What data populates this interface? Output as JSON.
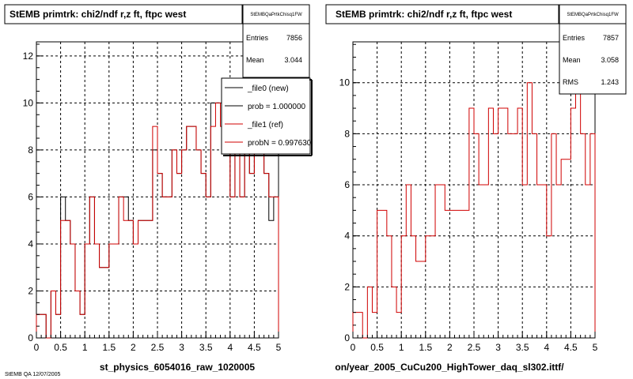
{
  "chart_data": [
    {
      "type": "line",
      "title": "StEMB primtrk: chi2/ndf r,z ft, ftpc west",
      "xlabel": "st_physics_6054016_raw_1020005",
      "ylabel": "",
      "xlim": [
        0,
        5
      ],
      "ylim": [
        0,
        12.6
      ],
      "x_ticks": [
        "0",
        "0.5",
        "1",
        "1.5",
        "2",
        "2.5",
        "3",
        "3.5",
        "4",
        "4.5",
        "5"
      ],
      "y_ticks": [
        "0",
        "2",
        "4",
        "6",
        "8",
        "10",
        "12"
      ],
      "grid": true,
      "stats": {
        "name": "StEMBQaPrtkChisq1FW",
        "rows": [
          {
            "label": "Entries",
            "value": "7856"
          },
          {
            "label": "Mean",
            "value": "3.044"
          }
        ]
      },
      "legend": {
        "placement": "top-right",
        "entries": [
          {
            "label": "_file0 (new)",
            "color": "#000000"
          },
          {
            "label": "prob = 1.000000",
            "color": "#000000"
          },
          {
            "label": "_file1 (ref)",
            "color": "#d00000"
          },
          {
            "label": "probN = 0.997630",
            "color": "#d00000"
          }
        ]
      },
      "series": [
        {
          "name": "_file0 (new)",
          "color": "#000000",
          "bin_width": 0.1,
          "values": [
            1,
            1,
            0,
            2,
            1,
            6,
            5,
            4,
            2,
            1,
            4,
            6,
            4,
            3,
            3,
            4,
            4,
            6,
            6,
            5,
            4,
            5,
            5,
            5,
            8,
            7,
            6,
            6,
            8,
            7,
            8,
            9,
            9,
            8,
            7,
            6,
            10,
            10,
            10,
            8,
            6,
            9,
            6,
            8,
            7,
            9,
            9,
            7,
            5,
            6
          ]
        },
        {
          "name": "_file1 (ref)",
          "color": "#d00000",
          "bin_width": 0.1,
          "values": [
            1,
            1,
            0,
            2,
            1,
            5,
            5,
            4,
            2,
            1,
            4,
            6,
            4,
            3,
            3,
            4,
            4,
            6,
            5,
            5,
            4,
            5,
            5,
            5,
            9,
            7,
            6,
            6,
            8,
            7,
            8,
            9,
            9,
            8,
            7,
            6,
            9,
            10,
            9,
            8,
            6,
            9,
            6,
            8,
            7,
            9,
            9,
            7,
            6,
            6
          ]
        }
      ]
    },
    {
      "type": "line",
      "title": "StEMB primtrk: chi2/ndf r,z ft, ftpc west",
      "xlabel": "on/year_2005_CuCu200_HighTower_daq_sl302.ittf/",
      "ylabel": "",
      "xlim": [
        0,
        5
      ],
      "ylim": [
        0,
        11.6
      ],
      "x_ticks": [
        "0",
        "0.5",
        "1",
        "1.5",
        "2",
        "2.5",
        "3",
        "3.5",
        "4",
        "4.5",
        "5"
      ],
      "y_ticks": [
        "0",
        "2",
        "4",
        "6",
        "8",
        "10"
      ],
      "grid": true,
      "stats": {
        "name": "StEMBQaPrtkChisq1FW",
        "rows": [
          {
            "label": "Entries",
            "value": "7857"
          },
          {
            "label": "Mean",
            "value": "3.058"
          },
          {
            "label": "RMS",
            "value": "1.243"
          }
        ]
      },
      "series": [
        {
          "name": "",
          "color": "#d00000",
          "bin_width": 0.1,
          "values": [
            1,
            1,
            0,
            2,
            1,
            5,
            5,
            4,
            2,
            1,
            4,
            6,
            4,
            3,
            3,
            4,
            4,
            6,
            6,
            5,
            5,
            5,
            5,
            5,
            9,
            8,
            6,
            6,
            9,
            8,
            9,
            9,
            8,
            8,
            9,
            6,
            10,
            8,
            6,
            6,
            4,
            8,
            6,
            7,
            7,
            9,
            10,
            8,
            6,
            8
          ]
        }
      ]
    }
  ],
  "footer_text": "StEMB QA 12/07/2005"
}
